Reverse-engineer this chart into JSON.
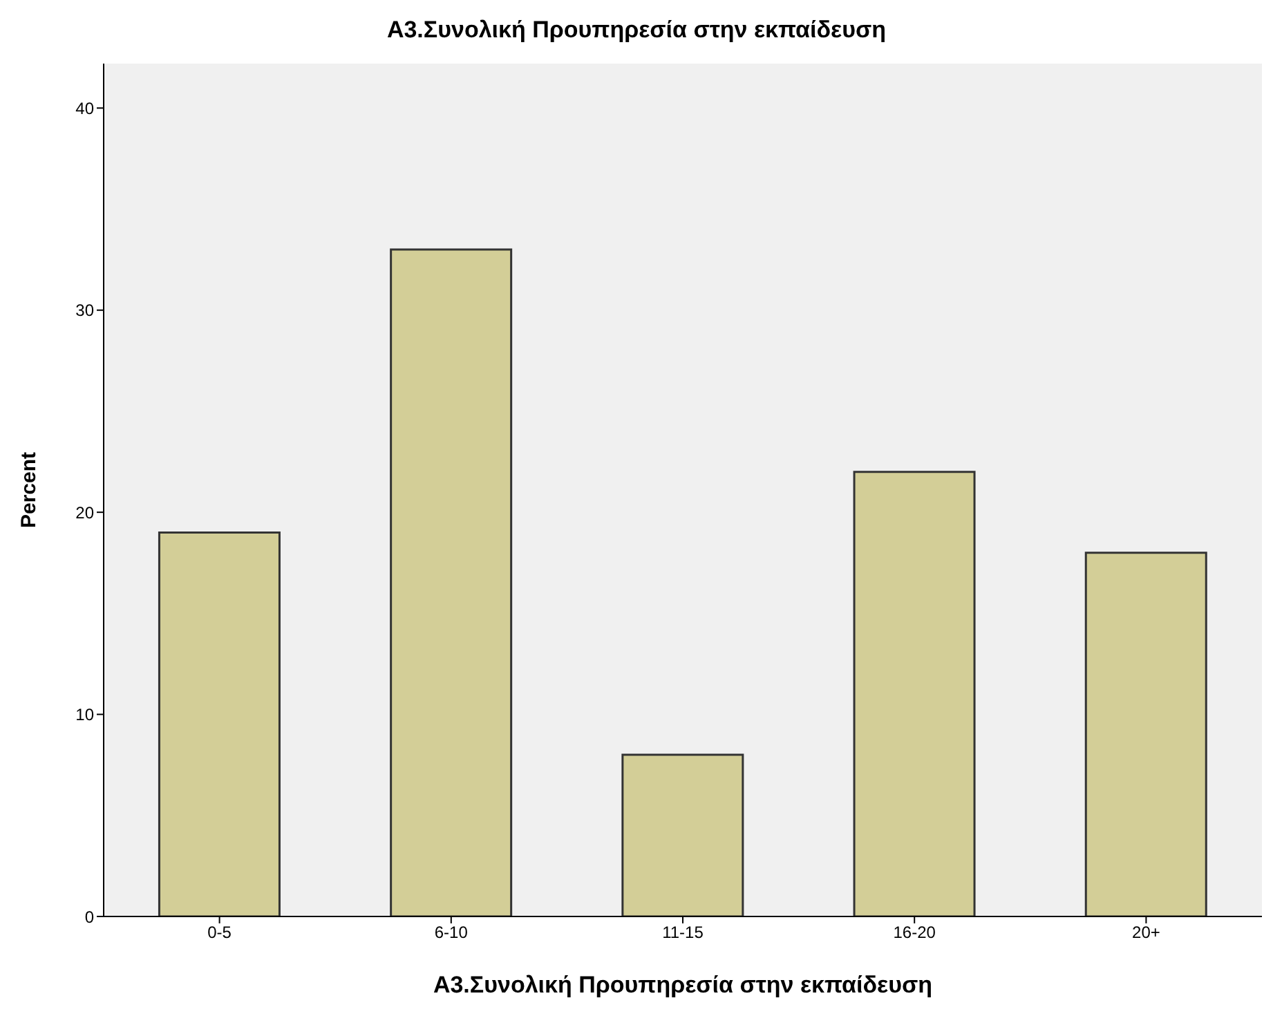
{
  "chart_data": {
    "type": "bar",
    "title": "Α3.Συνολική Προυπηρεσία στην εκπαίδευση",
    "xlabel": "Α3.Συνολική Προυπηρεσία στην εκπαίδευση",
    "ylabel": "Percent",
    "categories": [
      "0-5",
      "6-10",
      "11-15",
      "16-20",
      "20+"
    ],
    "values": [
      19,
      33,
      8,
      22,
      18
    ],
    "color": "#d3ce97",
    "ylim": [
      0,
      42.2
    ],
    "yticks": [
      0,
      10,
      20,
      30,
      40
    ],
    "grid": false,
    "legend": false
  }
}
